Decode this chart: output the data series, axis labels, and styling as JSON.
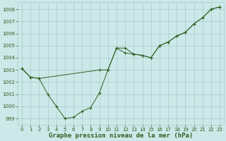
{
  "background_color": "#cce8e8",
  "grid_color": "#a8cccc",
  "line_color": "#2d6020",
  "xlim": [
    -0.5,
    23.5
  ],
  "ylim": [
    998.5,
    1008.6
  ],
  "yticks": [
    999,
    1000,
    1001,
    1002,
    1003,
    1004,
    1005,
    1006,
    1007,
    1008
  ],
  "xticks": [
    0,
    1,
    2,
    3,
    4,
    5,
    6,
    7,
    8,
    9,
    10,
    11,
    12,
    13,
    14,
    15,
    16,
    17,
    18,
    19,
    20,
    21,
    22,
    23
  ],
  "series1_x": [
    0,
    1,
    2,
    3,
    4,
    5,
    6,
    7,
    8,
    9,
    10,
    11,
    12,
    13,
    14,
    15,
    16,
    17,
    18,
    19,
    20,
    21,
    22,
    23
  ],
  "series1_y": [
    1003.1,
    1002.4,
    1002.3,
    1001.0,
    1000.0,
    999.0,
    999.1,
    999.6,
    999.9,
    1001.1,
    1003.0,
    1004.8,
    1004.8,
    1004.3,
    1004.2,
    1004.0,
    1005.0,
    1005.3,
    1005.8,
    1006.1,
    1006.8,
    1007.3,
    1008.0,
    1008.2
  ],
  "series2_x": [
    0,
    1,
    2,
    9,
    10,
    11,
    12,
    13,
    14,
    15,
    16,
    17,
    18,
    19,
    20,
    21,
    22,
    23
  ],
  "series2_y": [
    1003.1,
    1002.4,
    1002.3,
    1003.0,
    1003.0,
    1004.8,
    1004.4,
    1004.3,
    1004.2,
    1004.0,
    1005.0,
    1005.3,
    1005.8,
    1006.1,
    1006.8,
    1007.3,
    1008.0,
    1008.2
  ],
  "xlabel": "Graphe pression niveau de la mer (hPa)",
  "xlabel_color": "#2d6020",
  "xlabel_fontsize": 6.5,
  "tick_fontsize": 5.0,
  "tick_color": "#2d6020",
  "linewidth": 0.7,
  "markersize": 2.5
}
